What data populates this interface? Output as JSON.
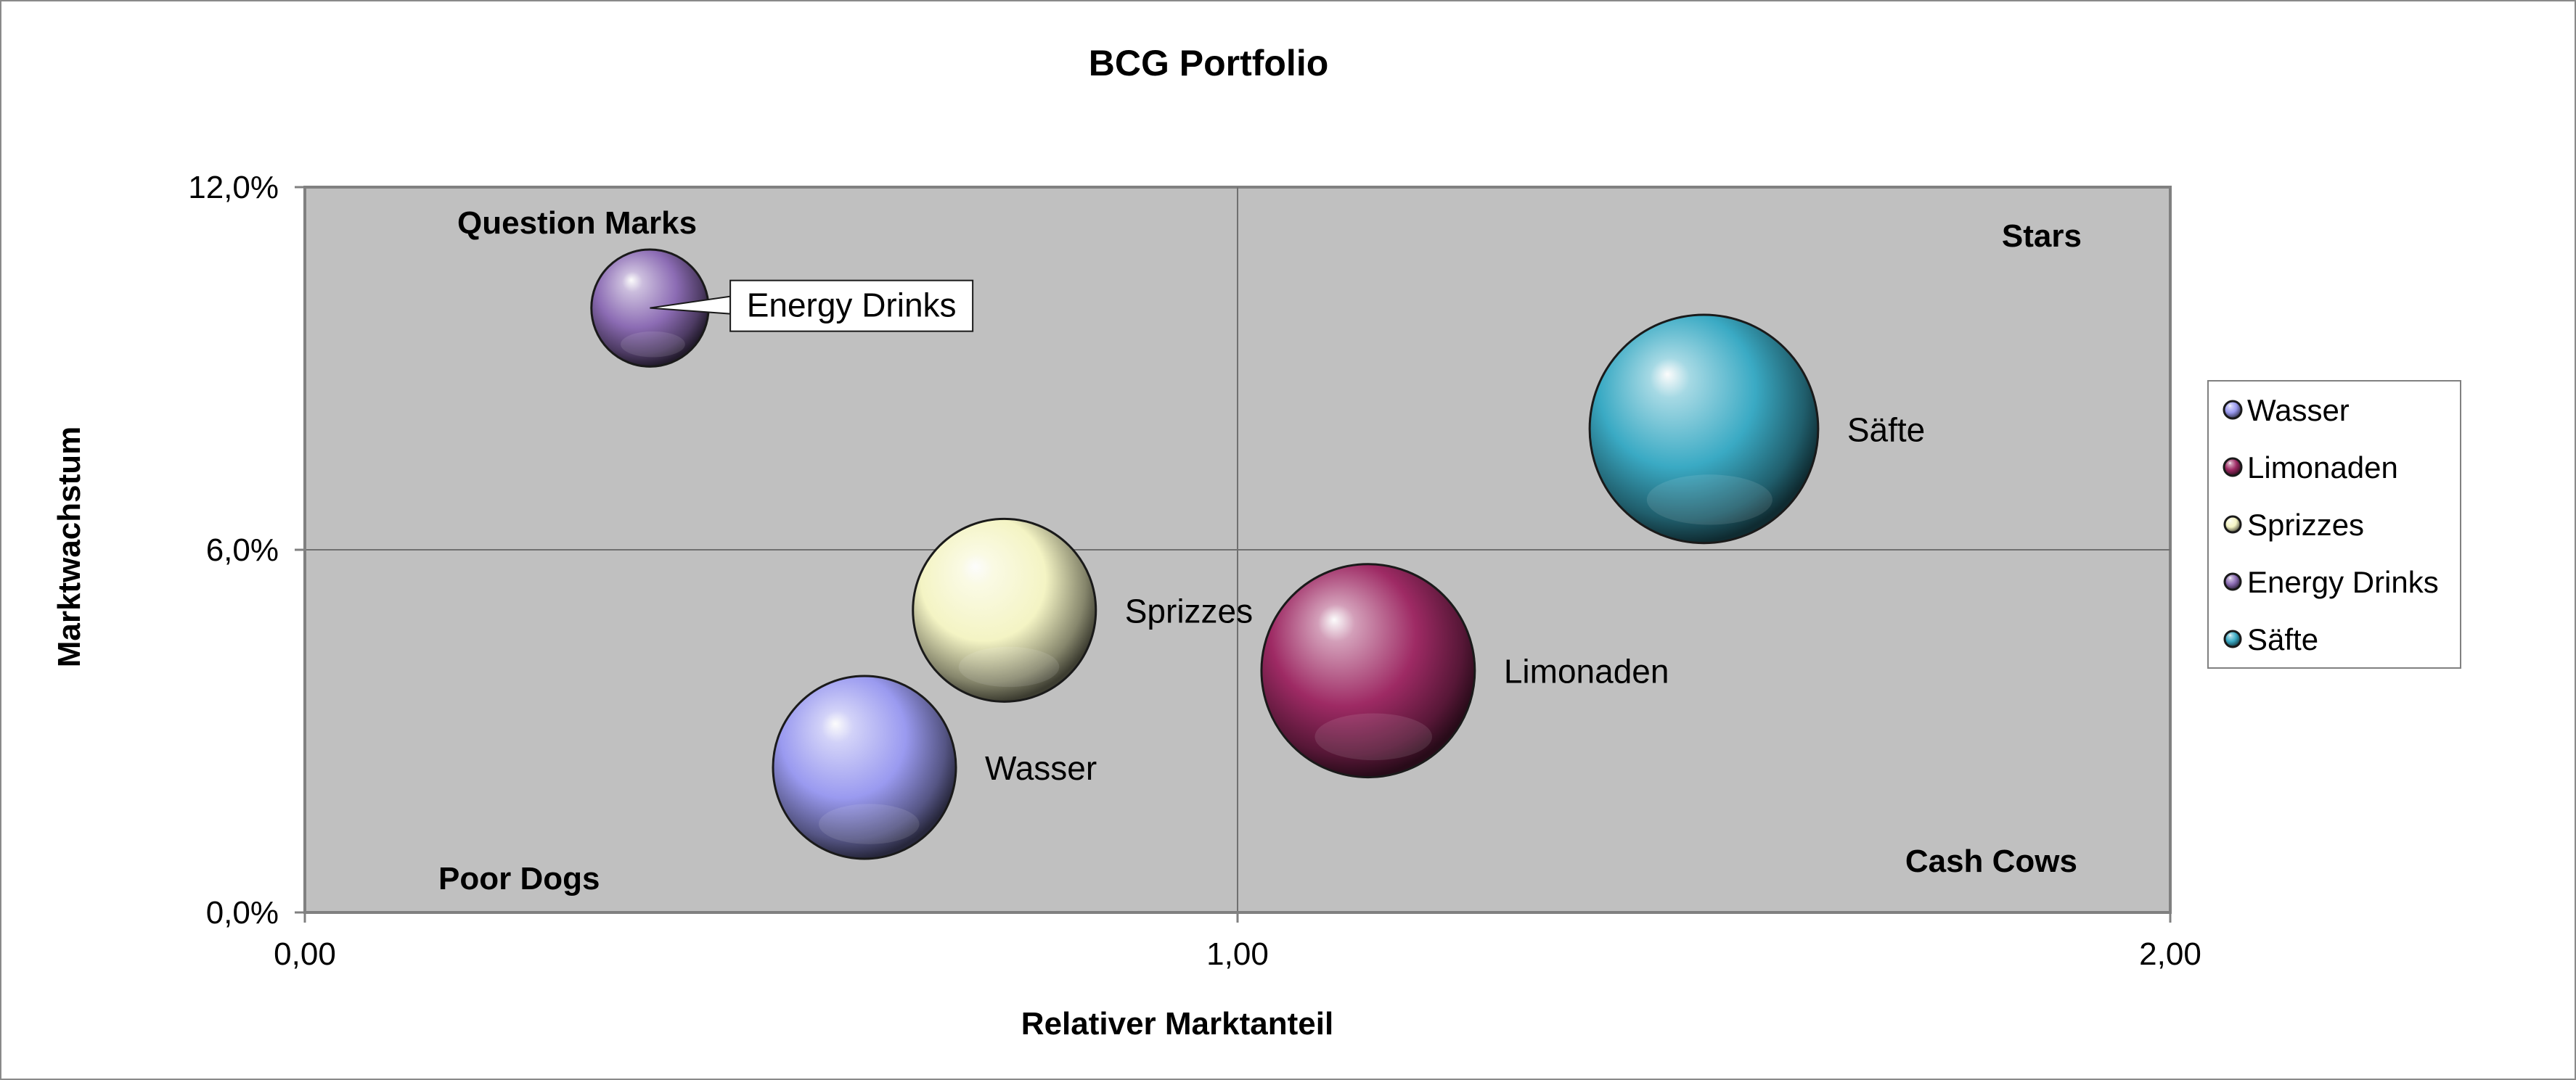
{
  "chart_data": {
    "type": "bubble",
    "title": "BCG Portfolio",
    "xlabel": "Relativer Marktanteil",
    "ylabel": "Marktwachstum",
    "xlim": [
      0,
      2
    ],
    "ylim": [
      0,
      0.12
    ],
    "x_ticks": [
      "0,00",
      "1,00",
      "2,00"
    ],
    "y_ticks": [
      "0,0%",
      "6,0%",
      "12,0%"
    ],
    "grid": true,
    "plot_background": "#c0c0c0",
    "legend_position": "right",
    "quadrants": {
      "top_left": "Question Marks",
      "top_right": "Stars",
      "bottom_left": "Poor Dogs",
      "bottom_right": "Cash Cows"
    },
    "series": [
      {
        "name": "Wasser",
        "x": 0.6,
        "y": 0.024,
        "size": 1.0,
        "color": "#9a9af0",
        "label": "Wasser"
      },
      {
        "name": "Limonaden",
        "x": 1.14,
        "y": 0.04,
        "size": 1.36,
        "color": "#9e2a64",
        "label": "Limonaden"
      },
      {
        "name": "Sprizzes",
        "x": 0.75,
        "y": 0.05,
        "size": 1.0,
        "color": "#f4f4c4",
        "label": "Sprizzes"
      },
      {
        "name": "Energy Drinks",
        "x": 0.37,
        "y": 0.1,
        "size": 0.41,
        "color": "#8c6cb4",
        "label": "Energy Drinks",
        "callout": true
      },
      {
        "name": "Säfte",
        "x": 1.5,
        "y": 0.08,
        "size": 1.56,
        "color": "#3aaac4",
        "label": "Säfte"
      }
    ]
  }
}
